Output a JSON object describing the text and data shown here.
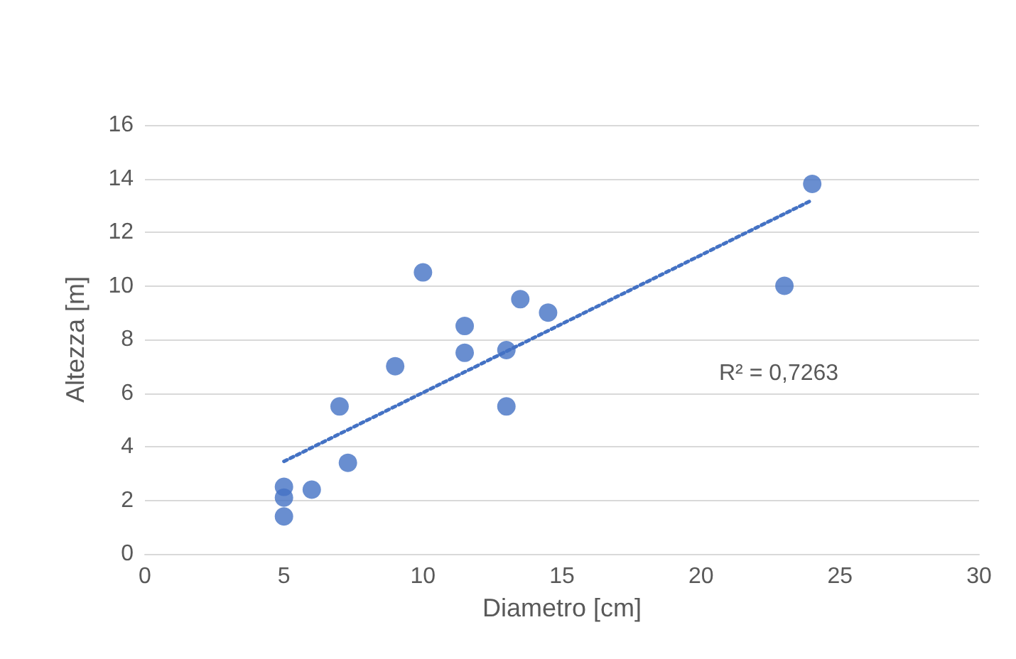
{
  "chart_data": {
    "type": "scatter",
    "xlabel": "Diametro [cm]",
    "ylabel": "Altezza [m]",
    "xlim": [
      0,
      30
    ],
    "xticks": [
      0,
      5,
      10,
      15,
      20,
      25,
      30
    ],
    "ylim": [
      0,
      16
    ],
    "yticks": [
      0,
      2,
      4,
      6,
      8,
      10,
      12,
      14,
      16
    ],
    "grid": "y",
    "marker": "circle",
    "annotations": [
      "R² = 0,7263"
    ],
    "series": [
      {
        "color": "#4472c4",
        "x": [
          5,
          5,
          5,
          6,
          7,
          7.3,
          9,
          10,
          11.5,
          11.5,
          13,
          13,
          13.5,
          14.5,
          23,
          24
        ],
        "values": [
          1.4,
          2.1,
          2.5,
          2.4,
          5.5,
          3.4,
          7,
          10.5,
          8.5,
          7.5,
          7.6,
          5.5,
          9.5,
          9,
          10,
          13.8
        ]
      },
      {
        "type": "line",
        "color": "#4472c4",
        "line_style": "dotted",
        "marker": "none",
        "x": [
          5,
          24
        ],
        "values": [
          3.45,
          13.2
        ]
      }
    ]
  }
}
